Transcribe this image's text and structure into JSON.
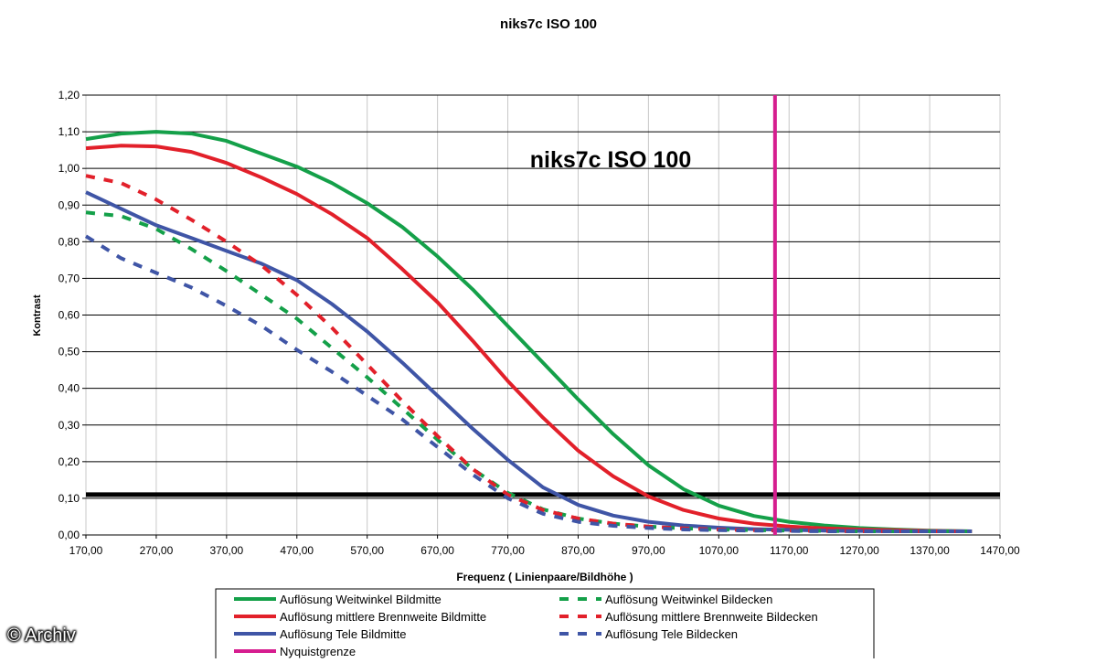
{
  "chart_data": {
    "type": "line",
    "title": "niks7c ISO 100",
    "inner_title": "niks7c ISO 100",
    "xlabel": "Frequenz ( Linienpaare/Bildhöhe )",
    "ylabel": "Kontrast",
    "xlim": [
      170,
      1470
    ],
    "ylim": [
      0,
      1.2
    ],
    "x_ticks": [
      "170,00",
      "270,00",
      "370,00",
      "470,00",
      "570,00",
      "670,00",
      "770,00",
      "870,00",
      "970,00",
      "1070,00",
      "1170,00",
      "1270,00",
      "1370,00",
      "1470,00"
    ],
    "y_ticks": [
      "0,00",
      "0,10",
      "0,20",
      "0,30",
      "0,40",
      "0,50",
      "0,60",
      "0,70",
      "0,80",
      "0,90",
      "1,00",
      "1,10",
      "1,20"
    ],
    "grid": true,
    "threshold": 0.11,
    "nyquist_x": 1150,
    "colors": {
      "green": "#14a049",
      "red": "#e2202a",
      "blue": "#3f55a6",
      "magenta": "#d61d8f",
      "black": "#000000"
    },
    "series": [
      {
        "name": "Auflösung Weitwinkel Bildmitte",
        "color": "#14a049",
        "dash": false,
        "x": [
          170,
          220,
          270,
          320,
          370,
          420,
          470,
          520,
          570,
          620,
          670,
          720,
          770,
          820,
          870,
          920,
          970,
          1020,
          1070,
          1120,
          1170,
          1220,
          1270,
          1320,
          1370,
          1430
        ],
        "y": [
          1.08,
          1.095,
          1.1,
          1.095,
          1.075,
          1.04,
          1.005,
          0.96,
          0.905,
          0.84,
          0.76,
          0.67,
          0.57,
          0.47,
          0.37,
          0.275,
          0.19,
          0.125,
          0.08,
          0.052,
          0.036,
          0.026,
          0.019,
          0.015,
          0.012,
          0.01
        ]
      },
      {
        "name": "Auflösung mittlere Brennweite Bildmitte",
        "color": "#e2202a",
        "dash": false,
        "x": [
          170,
          220,
          270,
          320,
          370,
          420,
          470,
          520,
          570,
          620,
          670,
          720,
          770,
          820,
          870,
          920,
          970,
          1020,
          1070,
          1120,
          1170,
          1220,
          1270,
          1320,
          1370,
          1430
        ],
        "y": [
          1.055,
          1.062,
          1.06,
          1.045,
          1.015,
          0.975,
          0.93,
          0.875,
          0.81,
          0.725,
          0.635,
          0.53,
          0.42,
          0.32,
          0.23,
          0.16,
          0.105,
          0.068,
          0.045,
          0.031,
          0.023,
          0.018,
          0.015,
          0.013,
          0.011,
          0.01
        ]
      },
      {
        "name": "Auflösung Tele Bildmitte",
        "color": "#3f55a6",
        "dash": false,
        "x": [
          170,
          220,
          270,
          320,
          370,
          420,
          470,
          520,
          570,
          620,
          670,
          720,
          770,
          820,
          870,
          920,
          970,
          1020,
          1070,
          1120,
          1170,
          1220,
          1270,
          1320,
          1370,
          1430
        ],
        "y": [
          0.935,
          0.89,
          0.845,
          0.81,
          0.775,
          0.74,
          0.695,
          0.63,
          0.555,
          0.47,
          0.38,
          0.29,
          0.205,
          0.13,
          0.082,
          0.053,
          0.036,
          0.026,
          0.02,
          0.016,
          0.014,
          0.012,
          0.011,
          0.01,
          0.01,
          0.01
        ]
      },
      {
        "name": "Nyquistgrenze",
        "color": "#d61d8f",
        "dash": false,
        "x": [
          1150,
          1150
        ],
        "y": [
          0,
          1.2
        ]
      },
      {
        "name": "Auflösung Weitwinkel Bildecken",
        "color": "#14a049",
        "dash": true,
        "x": [
          170,
          220,
          270,
          320,
          370,
          420,
          470,
          520,
          570,
          620,
          670,
          720,
          770,
          820,
          870,
          920,
          970,
          1020,
          1070,
          1120,
          1170,
          1220,
          1270,
          1320,
          1370,
          1430
        ],
        "y": [
          0.88,
          0.87,
          0.835,
          0.78,
          0.72,
          0.655,
          0.59,
          0.51,
          0.43,
          0.345,
          0.26,
          0.18,
          0.115,
          0.07,
          0.045,
          0.031,
          0.023,
          0.018,
          0.015,
          0.013,
          0.012,
          0.011,
          0.01,
          0.01,
          0.01,
          0.01
        ]
      },
      {
        "name": "Auflösung mittlere Brennweite Bildecken",
        "color": "#e2202a",
        "dash": true,
        "x": [
          170,
          220,
          270,
          320,
          370,
          420,
          470,
          520,
          570,
          620,
          670,
          720,
          770,
          820,
          870,
          920,
          970,
          1020,
          1070,
          1120,
          1170,
          1220,
          1270,
          1320,
          1370,
          1430
        ],
        "y": [
          0.98,
          0.96,
          0.915,
          0.86,
          0.8,
          0.735,
          0.655,
          0.565,
          0.465,
          0.365,
          0.27,
          0.18,
          0.11,
          0.068,
          0.045,
          0.031,
          0.023,
          0.018,
          0.015,
          0.013,
          0.012,
          0.011,
          0.01,
          0.01,
          0.01,
          0.01
        ]
      },
      {
        "name": "Auflösung Tele Bildecken",
        "color": "#3f55a6",
        "dash": true,
        "x": [
          170,
          220,
          270,
          320,
          370,
          420,
          470,
          520,
          570,
          620,
          670,
          720,
          770,
          820,
          870,
          920,
          970,
          1020,
          1070,
          1120,
          1170,
          1220,
          1270,
          1320,
          1370,
          1430
        ],
        "y": [
          0.815,
          0.755,
          0.715,
          0.675,
          0.625,
          0.57,
          0.505,
          0.445,
          0.38,
          0.315,
          0.24,
          0.165,
          0.1,
          0.058,
          0.036,
          0.025,
          0.019,
          0.015,
          0.013,
          0.012,
          0.011,
          0.01,
          0.01,
          0.01,
          0.01,
          0.01
        ]
      }
    ],
    "legend_layout": [
      [
        "Auflösung Weitwinkel Bildmitte",
        "Auflösung Weitwinkel Bildecken"
      ],
      [
        "Auflösung mittlere Brennweite Bildmitte",
        "Auflösung mittlere Brennweite Bildecken"
      ],
      [
        "Auflösung Tele Bildmitte",
        "Auflösung Tele Bildecken"
      ],
      [
        "Nyquistgrenze",
        null
      ]
    ],
    "legend_position": "bottom"
  },
  "watermark": "© Archiv"
}
